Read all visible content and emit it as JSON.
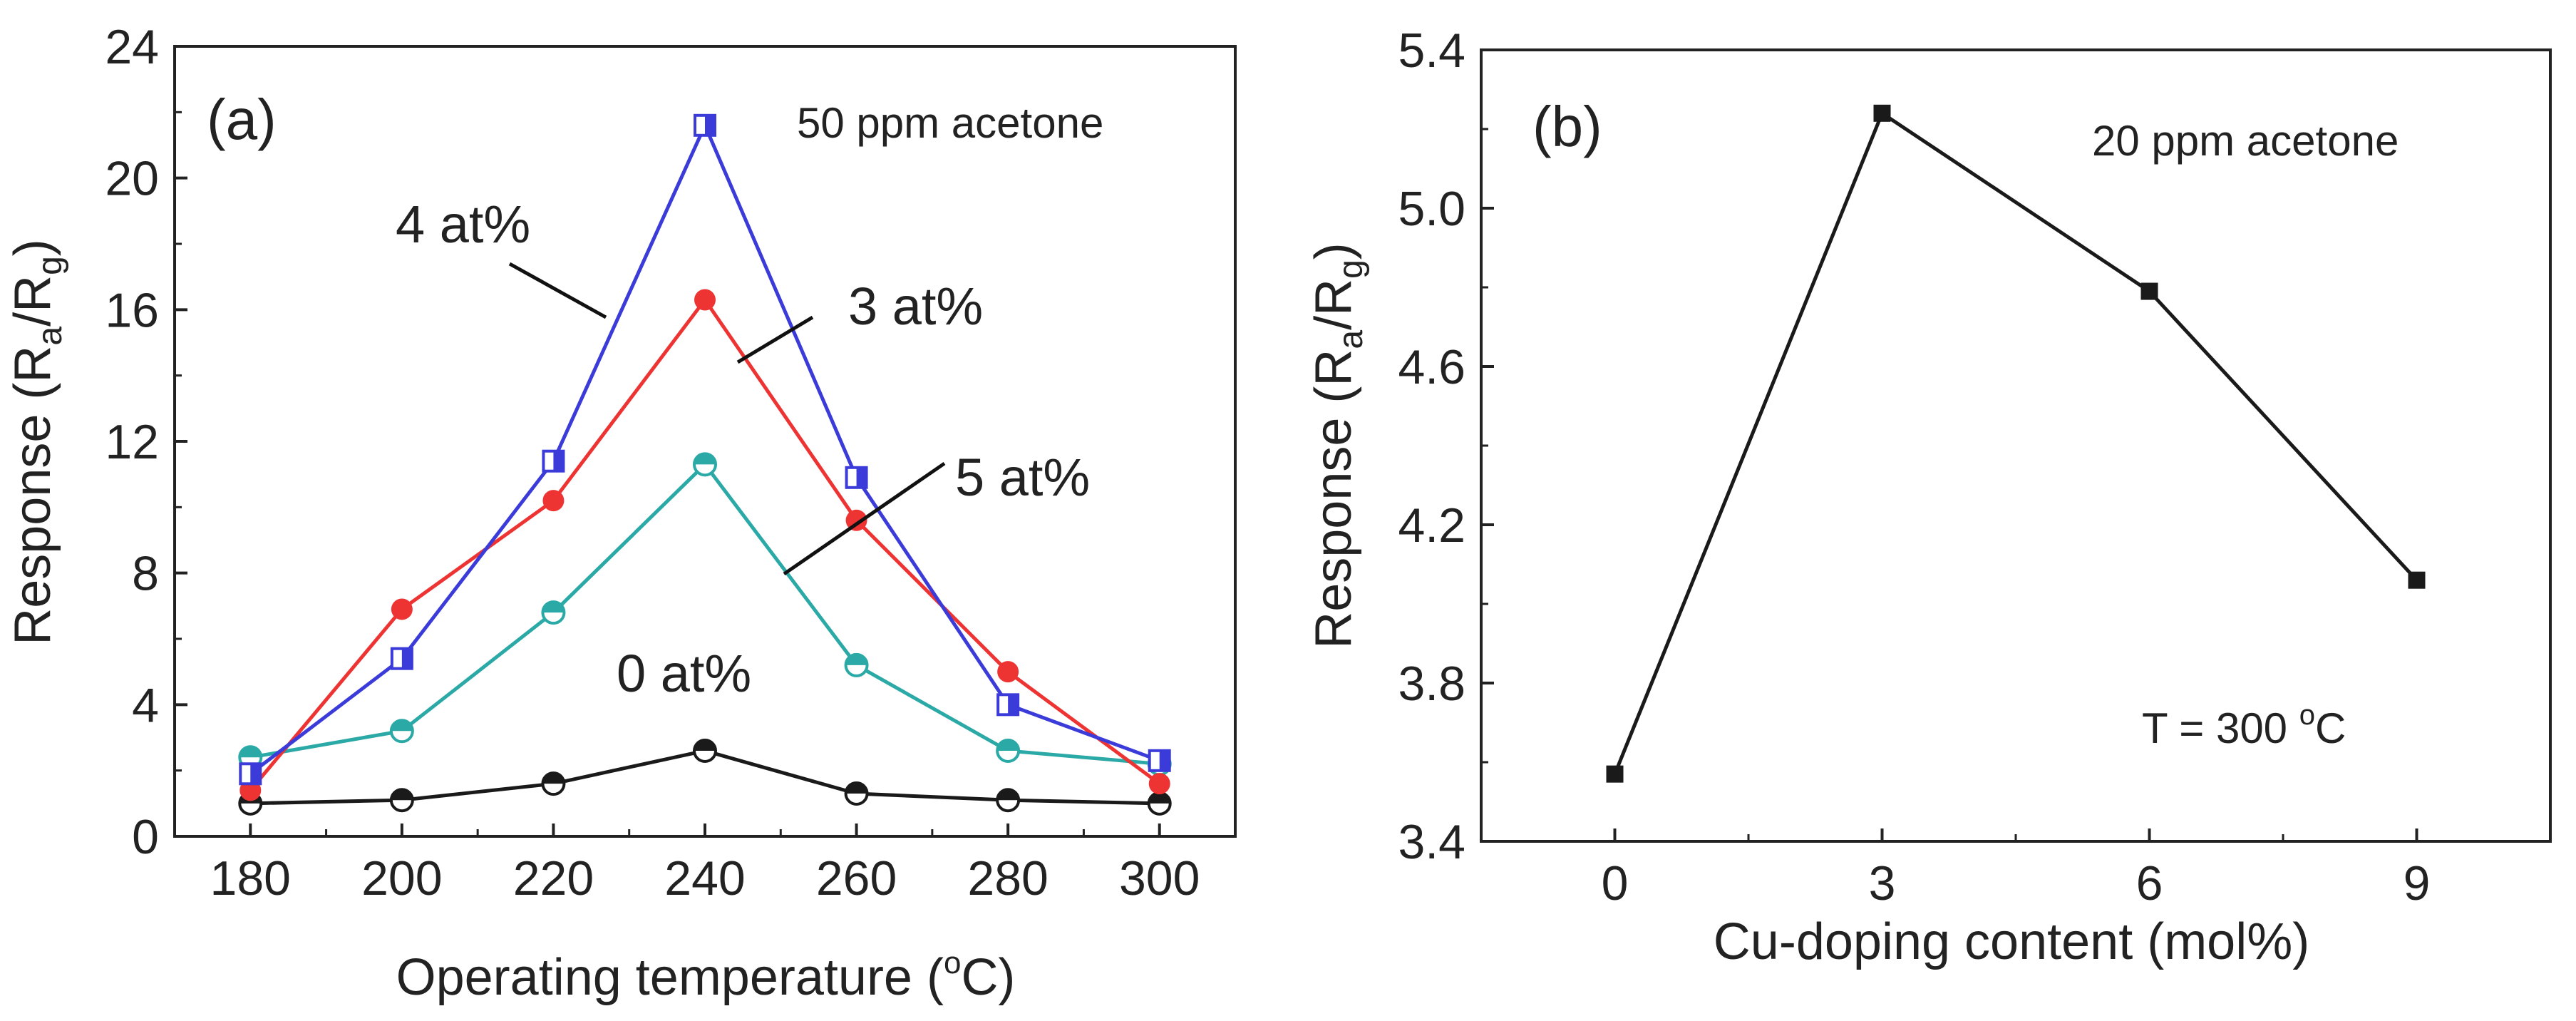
{
  "chart_data": [
    {
      "type": "line",
      "panel_label": "(a)",
      "annotation": "50 ppm acetone",
      "xlabel": "Operating temperature (",
      "xlabel_sup": "o",
      "xlabel_end": "C)",
      "ylabel": "Response (R",
      "ylabel_sub1": "a",
      "ylabel_mid": "/R",
      "ylabel_sub2": "g",
      "ylabel_end": ")",
      "xlim": [
        170,
        310
      ],
      "ylim": [
        0,
        24
      ],
      "x_ticks": [
        180,
        200,
        220,
        240,
        260,
        280,
        300
      ],
      "y_ticks": [
        0,
        4,
        8,
        12,
        16,
        20,
        24
      ],
      "x": [
        180,
        200,
        220,
        240,
        260,
        280,
        300
      ],
      "series": [
        {
          "name": "4 at%",
          "color": "#3b3bd9",
          "marker": "half-square",
          "values": [
            1.9,
            5.4,
            11.4,
            21.6,
            10.9,
            4.0,
            2.3
          ]
        },
        {
          "name": "3 at%",
          "color": "#ee3333",
          "marker": "filled-circle",
          "values": [
            1.4,
            6.9,
            10.2,
            16.3,
            9.6,
            5.0,
            1.6
          ]
        },
        {
          "name": "5 at%",
          "color": "#2aa9a6",
          "marker": "half-circle",
          "values": [
            2.4,
            3.2,
            6.8,
            11.3,
            5.2,
            2.6,
            2.2
          ]
        },
        {
          "name": "0 at%",
          "color": "#1a1a1a",
          "marker": "half-circle",
          "values": [
            1.0,
            1.1,
            1.6,
            2.6,
            1.3,
            1.1,
            1.0
          ]
        }
      ]
    },
    {
      "type": "line",
      "panel_label": "(b)",
      "annotation": "20 ppm acetone",
      "annotation2": "T = 300 ",
      "annotation2_sup": "o",
      "annotation2_end": "C",
      "xlabel": "Cu-doping content (mol%)",
      "ylabel": "Response (R",
      "ylabel_sub1": "a",
      "ylabel_mid": "/R",
      "ylabel_sub2": "g",
      "ylabel_end": ")",
      "xlim": [
        -1.5,
        10.5
      ],
      "ylim": [
        3.4,
        5.4
      ],
      "x_ticks": [
        0,
        3,
        6,
        9
      ],
      "y_ticks": [
        "3.4",
        "3.8",
        "4.2",
        "4.6",
        "5.0",
        "5.4"
      ],
      "series": [
        {
          "name": "response",
          "color": "#1a1a1a",
          "marker": "filled-square",
          "x": [
            0,
            3,
            6,
            9
          ],
          "values": [
            3.57,
            5.24,
            4.79,
            4.06
          ]
        }
      ]
    }
  ]
}
